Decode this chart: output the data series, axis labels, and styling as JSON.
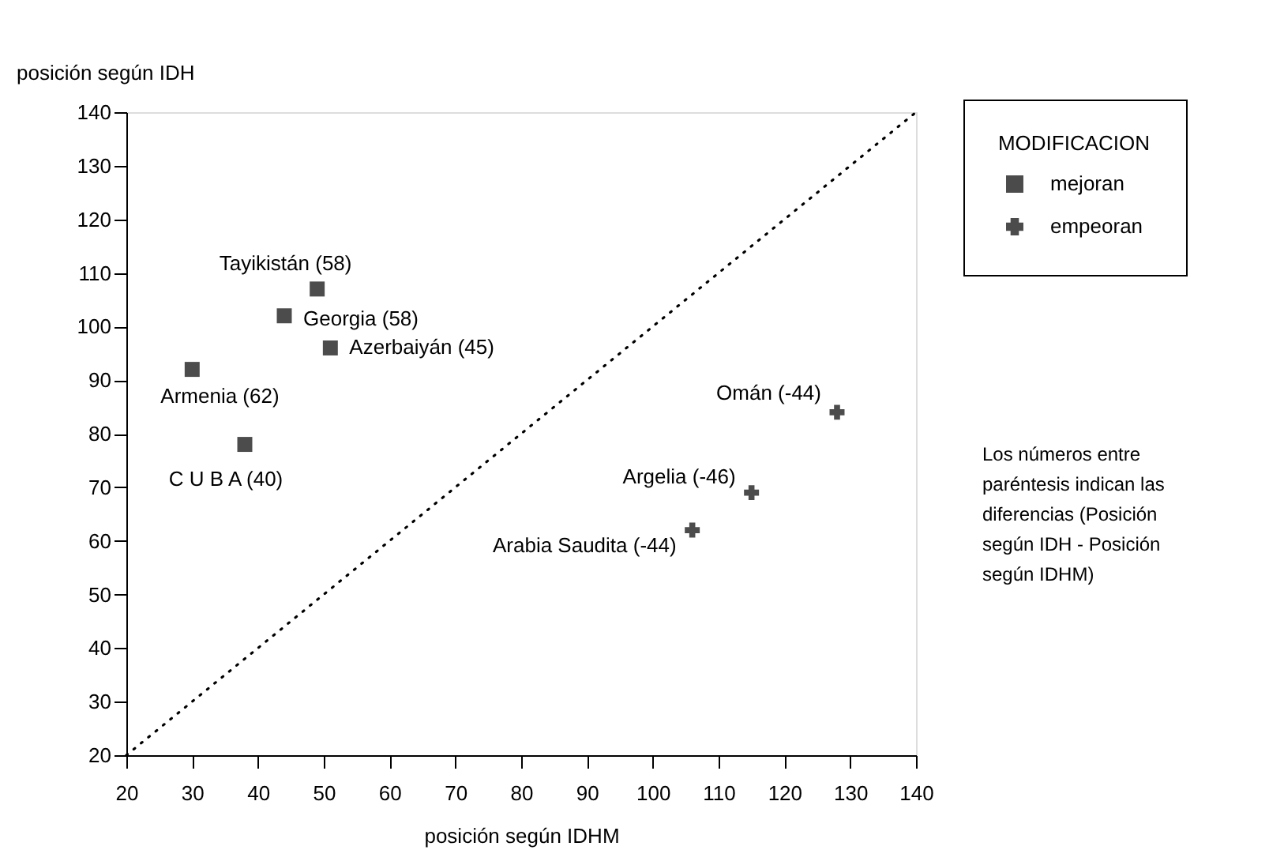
{
  "chart_data": {
    "type": "scatter",
    "xlabel": "posición según IDHM",
    "ylabel": "posición según IDH",
    "legend_title": "MODIFICACION",
    "legend": "top right",
    "grid": false,
    "xlim": [
      20,
      140
    ],
    "ylim": [
      20,
      140
    ],
    "xticks": [
      20,
      30,
      40,
      50,
      60,
      70,
      80,
      90,
      100,
      110,
      120,
      130,
      140
    ],
    "yticks": [
      20,
      30,
      40,
      50,
      60,
      70,
      80,
      90,
      100,
      110,
      120,
      130,
      140
    ],
    "series": [
      {
        "name": "mejoran",
        "color": "#000000",
        "marker": "square",
        "x": [
          49,
          44,
          51,
          30,
          38
        ],
        "values": [
          107,
          102,
          96,
          92,
          78
        ]
      },
      {
        "name": "empeoran",
        "color": "#000000",
        "marker": "cross",
        "x": [
          128,
          115,
          106
        ],
        "values": [
          84,
          69,
          62
        ]
      },
      {
        "type": "line",
        "color": "#000000",
        "line_style": "dotted",
        "marker": "none",
        "x": [
          20,
          140
        ],
        "values": [
          20,
          140
        ]
      }
    ],
    "annotations": [
      {
        "text": "Tayikistán (58)",
        "x": 49,
        "y": 107
      },
      {
        "text": "Georgia (58)",
        "x": 44,
        "y": 102
      },
      {
        "text": "Azerbaiyán (45)",
        "x": 51,
        "y": 96
      },
      {
        "text": "Armenia (62)",
        "x": 30,
        "y": 92
      },
      {
        "text": "C U B A (40)",
        "x": 38,
        "y": 78
      },
      {
        "text": "Omán (-44)",
        "x": 128,
        "y": 84
      },
      {
        "text": "Argelia (-46)",
        "x": 115,
        "y": 69
      },
      {
        "text": "Arabia Saudita (-44)",
        "x": 106,
        "y": 62
      },
      "Los números entre paréntesis indican las diferencias (Posición según IDH - Posición según IDHM)"
    ]
  }
}
